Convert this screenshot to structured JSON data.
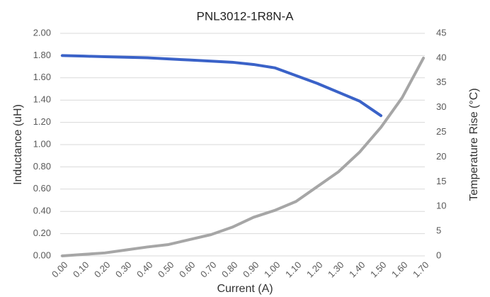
{
  "chart_data": {
    "type": "line",
    "title": "PNL3012-1R8N-A",
    "x_label": "Current (A)",
    "y_label": "Inductance (uH)",
    "y2_label": "Temperature Rise (°C)",
    "x": [
      0,
      0.1,
      0.2,
      0.3,
      0.4,
      0.5,
      0.6,
      0.7,
      0.8,
      0.9,
      1.0,
      1.1,
      1.2,
      1.3,
      1.4,
      1.5,
      1.6,
      1.7
    ],
    "series": [
      {
        "name": "Inductance",
        "color": "#3a62c8",
        "values": [
          1.8,
          1.795,
          1.79,
          1.785,
          1.78,
          1.77,
          1.76,
          1.75,
          1.74,
          1.72,
          1.69,
          1.62,
          1.55,
          1.47,
          1.39,
          1.26,
          null,
          null
        ]
      },
      {
        "name": "Temperature Rise",
        "color": "#a6a6a6",
        "axis": "y2",
        "values": [
          0,
          0.3,
          0.6,
          1.2,
          1.8,
          2.3,
          3.3,
          4.3,
          5.8,
          7.8,
          9.2,
          11,
          14,
          17,
          21,
          26,
          32,
          40
        ]
      }
    ],
    "xlim": [
      0,
      1.7
    ],
    "xticks": [
      {
        "value": 0,
        "label": "0.00"
      },
      {
        "value": 0.1,
        "label": "0.10"
      },
      {
        "value": 0.2,
        "label": "0.20"
      },
      {
        "value": 0.3,
        "label": "0.30"
      },
      {
        "value": 0.4,
        "label": "0.40"
      },
      {
        "value": 0.5,
        "label": "0.50"
      },
      {
        "value": 0.6,
        "label": "0.60"
      },
      {
        "value": 0.7,
        "label": "0.70"
      },
      {
        "value": 0.8,
        "label": "0.80"
      },
      {
        "value": 0.9,
        "label": "0.90"
      },
      {
        "value": 1.0,
        "label": "1.00"
      },
      {
        "value": 1.1,
        "label": "1.10"
      },
      {
        "value": 1.2,
        "label": "1.20"
      },
      {
        "value": 1.3,
        "label": "1.30"
      },
      {
        "value": 1.4,
        "label": "1.40"
      },
      {
        "value": 1.5,
        "label": "1.50"
      },
      {
        "value": 1.6,
        "label": "1.60"
      },
      {
        "value": 1.7,
        "label": "1.70"
      }
    ],
    "ylim": [
      0,
      2
    ],
    "yticks": [
      {
        "value": 0,
        "label": "0.00"
      },
      {
        "value": 0.2,
        "label": "0.20"
      },
      {
        "value": 0.4,
        "label": "0.40"
      },
      {
        "value": 0.6,
        "label": "0.60"
      },
      {
        "value": 0.8,
        "label": "0.80"
      },
      {
        "value": 1.0,
        "label": "1.00"
      },
      {
        "value": 1.2,
        "label": "1.20"
      },
      {
        "value": 1.4,
        "label": "1.40"
      },
      {
        "value": 1.6,
        "label": "1.60"
      },
      {
        "value": 1.8,
        "label": "1.80"
      },
      {
        "value": 2.0,
        "label": "2.00"
      }
    ],
    "y2lim": [
      0,
      45
    ],
    "y2ticks": [
      0,
      5,
      10,
      15,
      20,
      25,
      30,
      35,
      40,
      45
    ],
    "grid": true
  }
}
